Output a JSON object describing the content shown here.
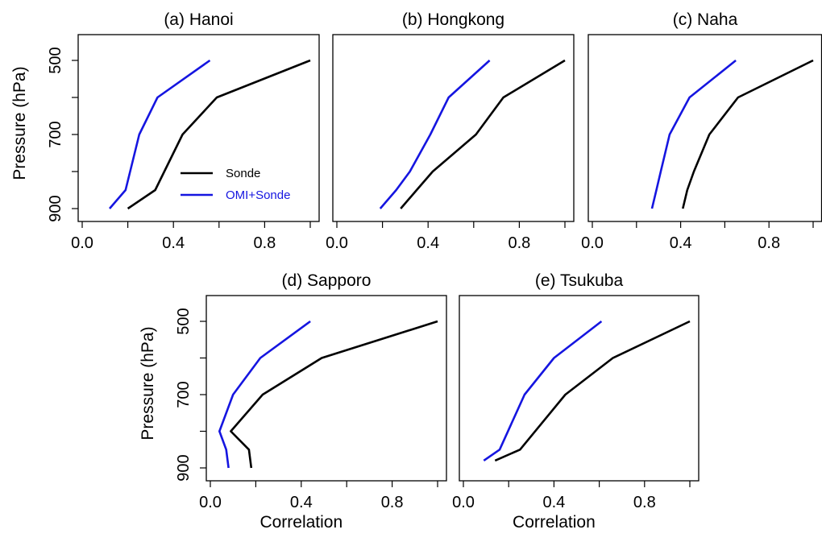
{
  "chart_data": [
    {
      "type": "line",
      "title": "(a) Hanoi",
      "xlabel": "",
      "ylabel": "Pressure (hPa)",
      "xlim": [
        0.0,
        1.0
      ],
      "ylim": [
        500,
        900
      ],
      "y_inverted": true,
      "xticks": [
        "0.0",
        "0.4",
        "0.8"
      ],
      "yticks": [
        "500",
        "700",
        "900"
      ],
      "legend": {
        "placement": "bottom-right",
        "entries": [
          "Sonde",
          "OMI+Sonde"
        ]
      },
      "series": [
        {
          "name": "Sonde",
          "color": "#000000",
          "x": [
            0.2,
            0.32,
            0.44,
            0.59,
            1.0
          ],
          "y": [
            900,
            850,
            700,
            600,
            500
          ]
        },
        {
          "name": "OMI+Sonde",
          "color": "#1515e0",
          "x": [
            0.12,
            0.19,
            0.25,
            0.33,
            0.56
          ],
          "y": [
            900,
            850,
            700,
            600,
            500
          ]
        }
      ]
    },
    {
      "type": "line",
      "title": "(b) Hongkong",
      "xlabel": "",
      "ylabel": "",
      "xlim": [
        0.0,
        1.0
      ],
      "ylim": [
        500,
        900
      ],
      "y_inverted": true,
      "xticks": [
        "0.0",
        "0.4",
        "0.8"
      ],
      "series": [
        {
          "name": "Sonde",
          "color": "#000000",
          "x": [
            0.28,
            0.35,
            0.42,
            0.61,
            0.73,
            1.0
          ],
          "y": [
            900,
            850,
            800,
            700,
            600,
            500
          ]
        },
        {
          "name": "OMI+Sonde",
          "color": "#1515e0",
          "x": [
            0.19,
            0.26,
            0.32,
            0.41,
            0.49,
            0.67
          ],
          "y": [
            900,
            850,
            800,
            700,
            600,
            500
          ]
        }
      ]
    },
    {
      "type": "line",
      "title": "(c) Naha",
      "xlabel": "",
      "ylabel": "",
      "xlim": [
        0.0,
        1.0
      ],
      "ylim": [
        500,
        900
      ],
      "y_inverted": true,
      "xticks": [
        "0.0",
        "0.4",
        "0.8"
      ],
      "series": [
        {
          "name": "Sonde",
          "color": "#000000",
          "x": [
            0.41,
            0.43,
            0.46,
            0.53,
            0.66,
            1.0
          ],
          "y": [
            900,
            850,
            800,
            700,
            600,
            500
          ]
        },
        {
          "name": "OMI+Sonde",
          "color": "#1515e0",
          "x": [
            0.27,
            0.29,
            0.31,
            0.35,
            0.44,
            0.65
          ],
          "y": [
            900,
            850,
            800,
            700,
            600,
            500
          ]
        }
      ]
    },
    {
      "type": "line",
      "title": "(d) Sapporo",
      "xlabel": "Correlation",
      "ylabel": "Pressure (hPa)",
      "xlim": [
        0.0,
        1.0
      ],
      "ylim": [
        500,
        900
      ],
      "y_inverted": true,
      "xticks": [
        "0.0",
        "0.4",
        "0.8"
      ],
      "yticks": [
        "500",
        "700",
        "900"
      ],
      "series": [
        {
          "name": "Sonde",
          "color": "#000000",
          "x": [
            0.18,
            0.17,
            0.09,
            0.23,
            0.49,
            1.0
          ],
          "y": [
            900,
            850,
            800,
            700,
            600,
            500
          ]
        },
        {
          "name": "OMI+Sonde",
          "color": "#1515e0",
          "x": [
            0.08,
            0.07,
            0.04,
            0.1,
            0.22,
            0.44
          ],
          "y": [
            900,
            850,
            800,
            700,
            600,
            500
          ]
        }
      ]
    },
    {
      "type": "line",
      "title": "(e) Tsukuba",
      "xlabel": "Correlation",
      "ylabel": "",
      "xlim": [
        0.0,
        1.0
      ],
      "ylim": [
        500,
        900
      ],
      "y_inverted": true,
      "xticks": [
        "0.0",
        "0.4",
        "0.8"
      ],
      "series": [
        {
          "name": "Sonde",
          "color": "#000000",
          "x": [
            0.14,
            0.25,
            0.45,
            0.66,
            1.0
          ],
          "y": [
            880,
            850,
            700,
            600,
            500
          ]
        },
        {
          "name": "OMI+Sonde",
          "color": "#1515e0",
          "x": [
            0.09,
            0.16,
            0.27,
            0.4,
            0.61
          ],
          "y": [
            880,
            850,
            700,
            600,
            500
          ]
        }
      ]
    }
  ]
}
